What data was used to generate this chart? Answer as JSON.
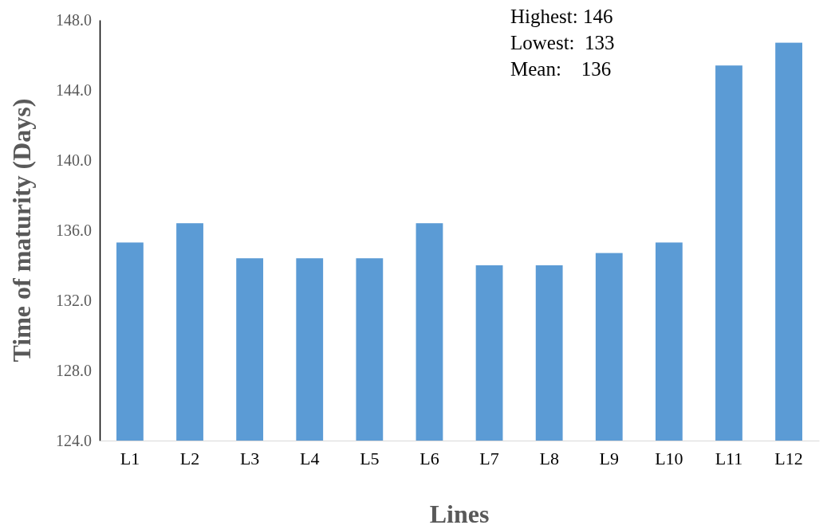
{
  "chart_data": {
    "type": "bar",
    "xlabel": "Lines",
    "ylabel": "Time of maturity (Days)",
    "categories": [
      "L1",
      "L2",
      "L3",
      "L4",
      "L5",
      "L6",
      "L7",
      "L8",
      "L9",
      "L10",
      "L11",
      "L12"
    ],
    "values": [
      135.3,
      136.4,
      134.4,
      134.4,
      134.4,
      136.4,
      134.0,
      134.0,
      134.7,
      135.3,
      145.4,
      146.7
    ],
    "color": "#5b9bd5",
    "ylim": [
      124,
      148
    ],
    "yticks": [
      {
        "value": 124,
        "label": "124.0"
      },
      {
        "value": 128,
        "label": "128.0"
      },
      {
        "value": 132,
        "label": "132.0"
      },
      {
        "value": 136,
        "label": "136.0"
      },
      {
        "value": 140,
        "label": "140.0"
      },
      {
        "value": 144,
        "label": "144.0"
      },
      {
        "value": 148,
        "label": "148.0"
      }
    ],
    "annotations": [
      "Highest: 146",
      "Lowest:  133",
      "Mean:    136"
    ],
    "grid": false
  }
}
